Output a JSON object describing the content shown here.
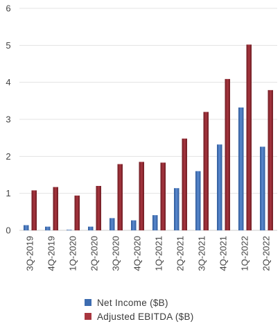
{
  "chart_data": {
    "type": "bar",
    "categories": [
      "3Q-2019",
      "4Q-2019",
      "1Q-2020",
      "2Q-2020",
      "3Q-2020",
      "4Q-2020",
      "1Q-2021",
      "2Q-2021",
      "3Q-2021",
      "4Q-2021",
      "1Q-2022",
      "2Q-2022"
    ],
    "series": [
      {
        "name": "Net Income ($B)",
        "color": "#3d6cb0",
        "values": [
          0.14,
          0.1,
          0.01,
          0.1,
          0.33,
          0.27,
          0.41,
          1.14,
          1.6,
          2.32,
          3.32,
          2.26
        ]
      },
      {
        "name": "Adjusted EBITDA ($B)",
        "color": "#8b2830",
        "values": [
          1.08,
          1.17,
          0.94,
          1.2,
          1.79,
          1.85,
          1.83,
          2.48,
          3.2,
          4.09,
          5.02,
          3.79
        ]
      }
    ],
    "title": "",
    "xlabel": "",
    "ylabel": "",
    "ylim": [
      0,
      6
    ],
    "yticks": [
      "0",
      "1",
      "2",
      "3",
      "4",
      "5",
      "6"
    ],
    "grid": true,
    "legend_position": "bottom"
  }
}
